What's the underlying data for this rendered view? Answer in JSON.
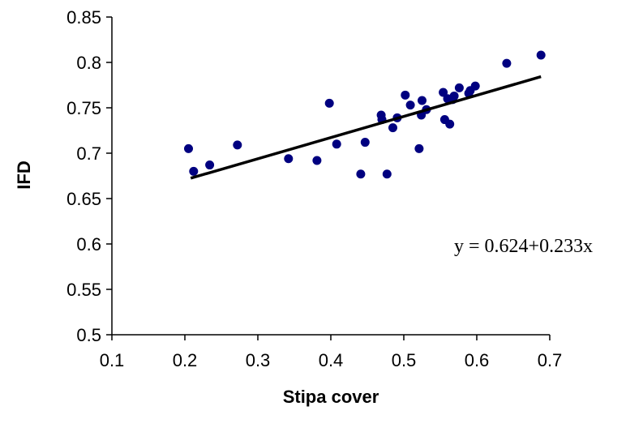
{
  "chart_data": {
    "type": "scatter",
    "xlabel": "Stipa cover",
    "ylabel": "IFD",
    "xlim": [
      0.1,
      0.7
    ],
    "ylim": [
      0.5,
      0.85
    ],
    "x_ticks": [
      "0.1",
      "0.2",
      "0.3",
      "0.4",
      "0.5",
      "0.6",
      "0.7"
    ],
    "y_ticks": [
      "0.5",
      "0.55",
      "0.6",
      "0.65",
      "0.7",
      "0.75",
      "0.8",
      "0.85"
    ],
    "grid": false,
    "legend": "none",
    "colors": {
      "points": "#000080",
      "trendline": "#000000",
      "axes": "#000000"
    },
    "points": [
      {
        "x": 0.205,
        "y": 0.705
      },
      {
        "x": 0.212,
        "y": 0.68
      },
      {
        "x": 0.234,
        "y": 0.687
      },
      {
        "x": 0.272,
        "y": 0.709
      },
      {
        "x": 0.342,
        "y": 0.694
      },
      {
        "x": 0.381,
        "y": 0.692
      },
      {
        "x": 0.398,
        "y": 0.755
      },
      {
        "x": 0.408,
        "y": 0.71
      },
      {
        "x": 0.441,
        "y": 0.677
      },
      {
        "x": 0.447,
        "y": 0.712
      },
      {
        "x": 0.469,
        "y": 0.742
      },
      {
        "x": 0.47,
        "y": 0.737
      },
      {
        "x": 0.477,
        "y": 0.677
      },
      {
        "x": 0.485,
        "y": 0.728
      },
      {
        "x": 0.491,
        "y": 0.739
      },
      {
        "x": 0.502,
        "y": 0.764
      },
      {
        "x": 0.509,
        "y": 0.753
      },
      {
        "x": 0.521,
        "y": 0.705
      },
      {
        "x": 0.524,
        "y": 0.742
      },
      {
        "x": 0.525,
        "y": 0.758
      },
      {
        "x": 0.531,
        "y": 0.748
      },
      {
        "x": 0.554,
        "y": 0.767
      },
      {
        "x": 0.556,
        "y": 0.737
      },
      {
        "x": 0.56,
        "y": 0.76
      },
      {
        "x": 0.563,
        "y": 0.732
      },
      {
        "x": 0.567,
        "y": 0.759
      },
      {
        "x": 0.569,
        "y": 0.763
      },
      {
        "x": 0.576,
        "y": 0.772
      },
      {
        "x": 0.589,
        "y": 0.766
      },
      {
        "x": 0.591,
        "y": 0.769
      },
      {
        "x": 0.598,
        "y": 0.774
      },
      {
        "x": 0.641,
        "y": 0.799
      },
      {
        "x": 0.688,
        "y": 0.808
      }
    ],
    "trendline": {
      "intercept": 0.624,
      "slope": 0.233,
      "x_range": [
        0.208,
        0.688
      ]
    },
    "equation": "y = 0.624+0.233x"
  }
}
